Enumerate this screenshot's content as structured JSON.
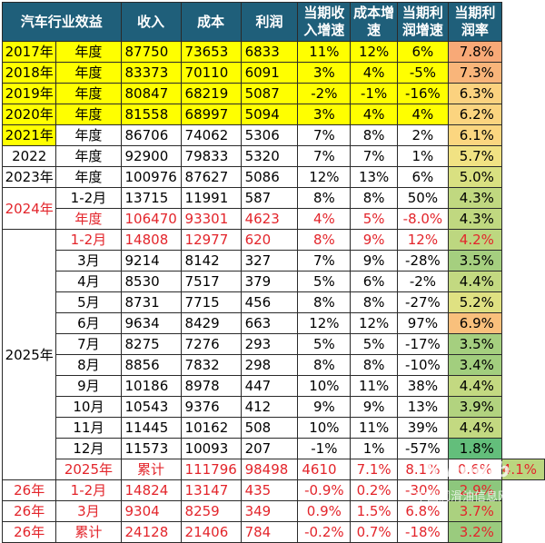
{
  "headers": [
    "汽车行业效益",
    "收入",
    "成本",
    "利润",
    "当期收入增速",
    "成本增速",
    "当期利润增速",
    "当期利润率"
  ],
  "rows": [
    {
      "a": "2017年",
      "b": "年度",
      "rev": "87750",
      "cost": "73653",
      "profit": "6833",
      "rg": "11%",
      "cg": "12%",
      "pg": "6%",
      "rate": "7.8%",
      "rate_color": "#f8a977",
      "yellow": true
    },
    {
      "a": "2018年",
      "b": "年度",
      "rev": "83373",
      "cost": "70110",
      "profit": "6091",
      "rg": "3%",
      "cg": "4%",
      "pg": "-5%",
      "rate": "7.3%",
      "rate_color": "#f9b57a",
      "yellow": true
    },
    {
      "a": "2019年",
      "b": "年度",
      "rev": "80847",
      "cost": "68219",
      "profit": "5087",
      "rg": "-2%",
      "cg": "-1%",
      "pg": "-16%",
      "rate": "6.3%",
      "rate_color": "#fbd27f",
      "yellow": true
    },
    {
      "a": "2020年",
      "b": "年度",
      "rev": "81558",
      "cost": "68997",
      "profit": "5094",
      "rg": "3%",
      "cg": "4%",
      "pg": "4%",
      "rate": "6.2%",
      "rate_color": "#fbd47f",
      "yellow": true
    },
    {
      "a": "2021年",
      "b": "年度",
      "rev": "86706",
      "cost": "74062",
      "profit": "5306",
      "rg": "7%",
      "cg": "8%",
      "pg": "2%",
      "rate": "6.1%",
      "rate_color": "#fbd680",
      "yellow_a": true
    },
    {
      "a": "2022",
      "b": "年度",
      "rev": "92900",
      "cost": "79833",
      "profit": "5320",
      "rg": "7%",
      "cg": "7%",
      "pg": "1%",
      "rate": "5.7%",
      "rate_color": "#f1e283"
    },
    {
      "a": "2023年",
      "b": "年度",
      "rev": "100976",
      "cost": "87627",
      "profit": "5086",
      "rg": "12%",
      "cg": "13%",
      "pg": "6%",
      "rate": "5.0%",
      "rate_color": "#d9e081"
    },
    {
      "a": "2024年",
      "b": "1-2月",
      "rev": "13715",
      "cost": "11991",
      "profit": "587",
      "rg": "8%",
      "cg": "8%",
      "pg": "50%",
      "rate": "4.3%",
      "rate_color": "#c0d880",
      "a_span": 2,
      "a_red": true
    },
    {
      "b": "年度",
      "rev": "106470",
      "cost": "93301",
      "profit": "4623",
      "rg": "4%",
      "cg": "5%",
      "pg": "-8.0%",
      "rate": "4.3%",
      "rate_color": "#c0d880",
      "red": true
    },
    {
      "a": "2025年",
      "b": "1-2月",
      "rev": "14808",
      "cost": "12977",
      "profit": "620",
      "rg": "8%",
      "cg": "9%",
      "pg": "12%",
      "rate": "4.2%",
      "rate_color": "#bdd780",
      "red": true,
      "a_span": 12
    },
    {
      "b": "3月",
      "rev": "9214",
      "cost": "8142",
      "profit": "327",
      "rg": "7%",
      "cg": "9%",
      "pg": "-28%",
      "rate": "3.5%",
      "rate_color": "#a5cf7f"
    },
    {
      "b": "4月",
      "rev": "8530",
      "cost": "7517",
      "profit": "379",
      "rg": "5%",
      "cg": "6%",
      "pg": "-2%",
      "rate": "4.4%",
      "rate_color": "#c3d981"
    },
    {
      "b": "5月",
      "rev": "8731",
      "cost": "7715",
      "profit": "456",
      "rg": "8%",
      "cg": "8%",
      "pg": "-27%",
      "rate": "5.2%",
      "rate_color": "#dfe182"
    },
    {
      "b": "6月",
      "rev": "9634",
      "cost": "8429",
      "profit": "663",
      "rg": "12%",
      "cg": "12%",
      "pg": "97%",
      "rate": "6.9%",
      "rate_color": "#f9c07c"
    },
    {
      "b": "7月",
      "rev": "8275",
      "cost": "7276",
      "profit": "293",
      "rg": "5%",
      "cg": "5%",
      "pg": "-17%",
      "rate": "3.5%",
      "rate_color": "#a5cf7f"
    },
    {
      "b": "8月",
      "rev": "8856",
      "cost": "7832",
      "profit": "298",
      "rg": "8%",
      "cg": "8%",
      "pg": "-10%",
      "rate": "3.4%",
      "rate_color": "#a2ce7e"
    },
    {
      "b": "9月",
      "rev": "10186",
      "cost": "8978",
      "profit": "447",
      "rg": "10%",
      "cg": "11%",
      "pg": "38%",
      "rate": "4.4%",
      "rate_color": "#c3d981"
    },
    {
      "b": "10月",
      "rev": "10543",
      "cost": "9376",
      "profit": "412",
      "rg": "9%",
      "cg": "9%",
      "pg": "13%",
      "rate": "3.9%",
      "rate_color": "#b2d37f"
    },
    {
      "b": "11月",
      "rev": "11445",
      "cost": "10162",
      "profit": "508",
      "rg": "10%",
      "cg": "11%",
      "pg": "39%",
      "rate": "4.4%",
      "rate_color": "#c3d981"
    },
    {
      "b": "12月",
      "rev": "11573",
      "cost": "10093",
      "profit": "207",
      "rg": "-1%",
      "cg": "1%",
      "pg": "-57%",
      "rate": "1.8%",
      "rate_color": "#63be7b"
    },
    {
      "a": "2025年",
      "b": "累计",
      "rev": "111796",
      "cost": "98498",
      "profit": "4610",
      "rg": "7.1%",
      "cg": "8.1%",
      "pg": "0.6%",
      "rate": "4.1%",
      "rate_color": "#bad67f",
      "red": true,
      "a_red": true
    },
    {
      "a": "26年",
      "b": "1-2月",
      "rev": "14824",
      "cost": "13147",
      "profit": "435",
      "rg": "-0.9%",
      "cg": "0.2%",
      "pg": "-30%",
      "rate": "2.9%",
      "rate_color": "#8dc77d",
      "red": true,
      "a_red": true
    },
    {
      "a": "26年",
      "b": "3月",
      "rev": "9304",
      "cost": "8259",
      "profit": "349",
      "rg": "0.9%",
      "cg": "1.5%",
      "pg": "6.8%",
      "rate": "3.7%",
      "rate_color": "#abd17f",
      "red": true,
      "a_red": true
    },
    {
      "a": "26年",
      "b": "累计",
      "rev": "24128",
      "cost": "21406",
      "profit": "784",
      "rg": "-0.2%",
      "cg": "0.7%",
      "pg": "-18%",
      "rate": "3.2%",
      "rate_color": "#9acb7e",
      "red": true,
      "a_red": true
    }
  ],
  "colors": {
    "header_bg": "#1f5f7a",
    "header_text": "#ffffff",
    "highlight_yellow": "#ffff00",
    "red_text": "#e3252b"
  },
  "watermark": {
    "line1": "Sinolub",
    "line2": "中国润滑油信息网"
  }
}
